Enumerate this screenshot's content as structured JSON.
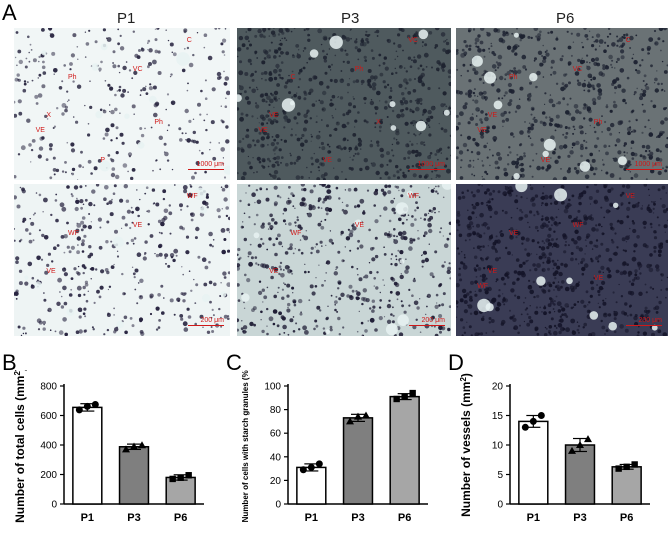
{
  "panel_letters": {
    "a": "A",
    "b": "B",
    "c": "C",
    "d": "D"
  },
  "columns": [
    "P1",
    "P3",
    "P6"
  ],
  "micrographs": {
    "top": [
      {
        "bg": "#f1f6f6",
        "stain": "#2d2a44",
        "density": 0.35,
        "labels": [
          "C",
          "VC",
          "Ph",
          "X",
          "VE",
          "Ph",
          "P"
        ],
        "scale": "1000 μm"
      },
      {
        "bg": "#4f5a5e",
        "stain": "#1e2330",
        "density": 0.8,
        "labels": [
          "VC",
          "Ph",
          "C",
          "VE",
          "VE",
          "X",
          "VE"
        ],
        "scale": "1000 μm"
      },
      {
        "bg": "#6a7275",
        "stain": "#1c2130",
        "density": 0.75,
        "labels": [
          "C",
          "VC",
          "Ph",
          "VE",
          "VE",
          "Ph",
          "VE"
        ],
        "scale": "1000 μm"
      }
    ],
    "bottom": [
      {
        "bg": "#eef4f4",
        "stain": "#27233f",
        "density": 0.45,
        "labels": [
          "WF",
          "VE",
          "WF",
          "VE"
        ],
        "scale": "200 μm"
      },
      {
        "bg": "#c9d6d6",
        "stain": "#1f1d35",
        "density": 0.6,
        "labels": [
          "WF",
          "VE",
          "WF",
          "VE"
        ],
        "scale": "200 μm"
      },
      {
        "bg": "#3a3c55",
        "stain": "#141428",
        "density": 0.85,
        "labels": [
          "VE",
          "WF",
          "VE",
          "VE",
          "WF",
          "VE"
        ],
        "scale": "200 μm"
      }
    ]
  },
  "colors": {
    "scale_text": "#d01818",
    "bar_p1": "#ffffff",
    "bar_p3": "#7f7f7f",
    "bar_p6": "#a6a6a6",
    "axis": "#000000"
  },
  "chart_data": [
    {
      "type": "bar",
      "panel": "B",
      "categories": [
        "P1",
        "P3",
        "P6"
      ],
      "values": [
        655,
        388,
        180
      ],
      "errors": [
        25,
        18,
        18
      ],
      "points": [
        [
          638,
          662,
          675
        ],
        [
          370,
          390,
          398
        ],
        [
          170,
          178,
          195
        ]
      ],
      "markers": [
        "circle",
        "triangle",
        "square"
      ],
      "ylabel_main": "Number of total cells (mm",
      "ylabel_sup": "2",
      "ylabel_end": ")",
      "ylim": [
        0,
        800
      ],
      "yticks": [
        0,
        200,
        400,
        600,
        800
      ]
    },
    {
      "type": "bar",
      "panel": "C",
      "categories": [
        "P1",
        "P3",
        "P6"
      ],
      "values": [
        31,
        73,
        91
      ],
      "errors": [
        3,
        3,
        2.5
      ],
      "points": [
        [
          29,
          31,
          34
        ],
        [
          70,
          74,
          75
        ],
        [
          89,
          91,
          94
        ]
      ],
      "markers": [
        "circle",
        "triangle",
        "square"
      ],
      "ylabel_main": "Number of cells with starch granules (%)",
      "ylabel_sup": "",
      "ylabel_end": "",
      "ylim": [
        0,
        100
      ],
      "yticks": [
        0,
        20,
        40,
        60,
        80,
        100
      ]
    },
    {
      "type": "bar",
      "panel": "D",
      "categories": [
        "P1",
        "P3",
        "P6"
      ],
      "values": [
        14,
        10,
        6.3
      ],
      "errors": [
        1,
        1.1,
        0.4
      ],
      "points": [
        [
          13,
          14,
          15
        ],
        [
          9,
          10,
          11
        ],
        [
          6,
          6.3,
          6.7
        ]
      ],
      "markers": [
        "circle",
        "triangle",
        "square"
      ],
      "ylabel_main": "Number of vessels (mm",
      "ylabel_sup": "2",
      "ylabel_end": ")",
      "ylim": [
        0,
        20
      ],
      "yticks": [
        0,
        5,
        10,
        15,
        20
      ]
    }
  ]
}
